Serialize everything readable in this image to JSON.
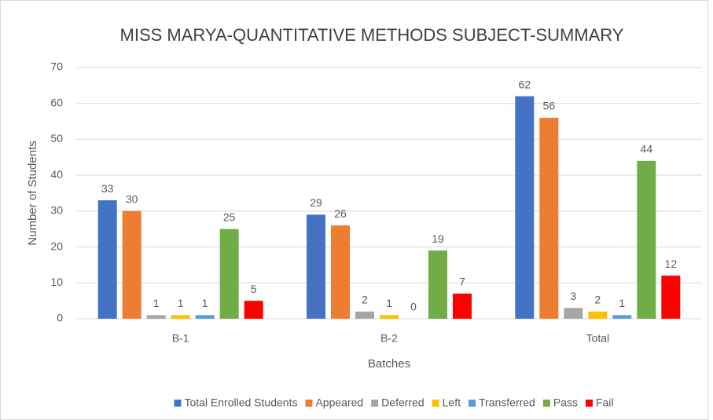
{
  "chart_data": {
    "type": "bar",
    "title": "MISS MARYA-QUANTITATIVE METHODS SUBJECT-SUMMARY",
    "x_label": "Batches",
    "y_label": "Number of Students",
    "categories": [
      "B-1",
      "B-2",
      "Total"
    ],
    "series": [
      {
        "name": "Total Enrolled Students",
        "color": "#4472c4",
        "values": [
          33,
          29,
          62
        ]
      },
      {
        "name": "Appeared",
        "color": "#ed7d31",
        "values": [
          30,
          26,
          56
        ]
      },
      {
        "name": "Deferred",
        "color": "#a5a5a5",
        "values": [
          1,
          2,
          3
        ]
      },
      {
        "name": "Left",
        "color": "#ffc000",
        "values": [
          1,
          1,
          2
        ]
      },
      {
        "name": "Transferred",
        "color": "#5b9bd5",
        "values": [
          1,
          0,
          1
        ]
      },
      {
        "name": "Pass",
        "color": "#70ad47",
        "values": [
          25,
          19,
          44
        ]
      },
      {
        "name": "Fail",
        "color": "#ff0000",
        "values": [
          5,
          7,
          12
        ]
      }
    ],
    "ylim": [
      0,
      70
    ],
    "yticks": [
      0,
      10,
      20,
      30,
      40,
      50,
      60,
      70
    ],
    "grid": true,
    "legend": "bottom"
  }
}
